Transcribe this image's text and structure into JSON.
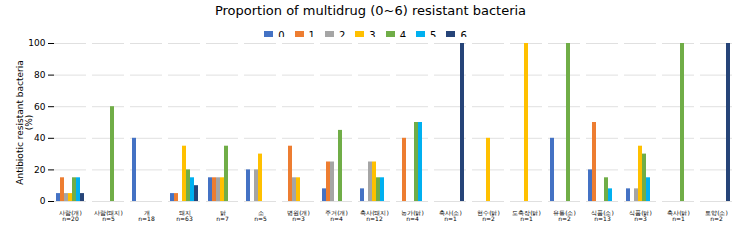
{
  "chart_data": {
    "type": "bar",
    "title": "Proportion of multidrug (0~6) resistant bacteria",
    "ylabel": "Antibiotic resistant bacteria\n(%)",
    "categories": [
      "사람(개)\nn=20",
      "사람(돼지)\nn=5",
      "개\nn=18",
      "돼지\nn=63",
      "닭\nn=7",
      "소\nn=5",
      "병원(개)\nn=3",
      "주거(개)\nn=4",
      "축사(돼지)\nn=12",
      "농가(닭)\nn=4",
      "축사(소)\nn=1",
      "현수(닭)\nn=2",
      "도축장(닭)\nn=1",
      "유통(소)\nn=2",
      "식품(소)\nn=13",
      "식품(닭)\nn=3",
      "축사(닭)\nn=1",
      "토양(소)\nn=2"
    ],
    "series": [
      {
        "name": "0",
        "color": "#4472c4",
        "values": [
          5,
          0,
          40,
          5,
          15,
          20,
          0,
          8,
          8,
          0,
          0,
          0,
          0,
          40,
          20,
          8,
          0,
          0
        ]
      },
      {
        "name": "1",
        "color": "#ed7d31",
        "values": [
          15,
          0,
          0,
          5,
          15,
          0,
          35,
          25,
          0,
          40,
          0,
          0,
          0,
          0,
          50,
          0,
          0,
          0
        ]
      },
      {
        "name": "2",
        "color": "#a5a5a5",
        "values": [
          5,
          0,
          0,
          0,
          15,
          20,
          15,
          25,
          25,
          0,
          0,
          0,
          0,
          0,
          0,
          8,
          0,
          0
        ]
      },
      {
        "name": "3",
        "color": "#ffc000",
        "values": [
          5,
          0,
          0,
          35,
          15,
          30,
          15,
          0,
          25,
          0,
          0,
          40,
          100,
          0,
          0,
          35,
          0,
          0
        ]
      },
      {
        "name": "4",
        "color": "#70ad47",
        "values": [
          15,
          60,
          0,
          20,
          35,
          0,
          0,
          45,
          15,
          50,
          0,
          0,
          0,
          100,
          15,
          30,
          100,
          0
        ]
      },
      {
        "name": "5",
        "color": "#00b0f0",
        "values": [
          15,
          0,
          0,
          15,
          0,
          0,
          0,
          0,
          15,
          50,
          0,
          0,
          0,
          0,
          8,
          15,
          0,
          0
        ]
      },
      {
        "name": "6",
        "color": "#264478",
        "values": [
          5,
          0,
          0,
          10,
          0,
          0,
          0,
          0,
          0,
          0,
          100,
          0,
          0,
          0,
          0,
          0,
          0,
          100
        ]
      }
    ],
    "ylim": [
      0,
      100
    ],
    "yticks": [
      0,
      20,
      40,
      60,
      80,
      100
    ],
    "grid": true,
    "legend": "top"
  }
}
